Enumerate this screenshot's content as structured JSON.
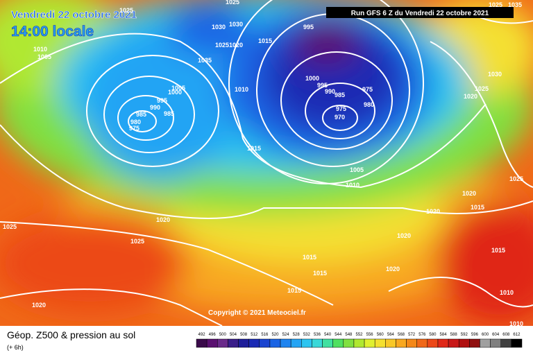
{
  "header": {
    "date": "Vendredi 22 octobre 2021",
    "time": "14:00 locale",
    "run": "Run GFS 6 Z du Vendredi 22 octobre 2021"
  },
  "footer": {
    "title": "Géop. Z500 & pression au sol",
    "lead": "(+ 6h)",
    "copyright": "Copyright © 2021 Meteociel.fr"
  },
  "legend": {
    "values": [
      492,
      496,
      500,
      504,
      508,
      512,
      516,
      520,
      524,
      528,
      532,
      536,
      540,
      544,
      548,
      552,
      556,
      560,
      564,
      568,
      572,
      576,
      580,
      584,
      588,
      592,
      596,
      600,
      604,
      608,
      612
    ],
    "colors": [
      "#3a0a4a",
      "#5a1070",
      "#6a2a8a",
      "#3a1e8a",
      "#1e1e9a",
      "#1a2ab4",
      "#1a44d0",
      "#1a64e4",
      "#1e84f0",
      "#24a4f4",
      "#2cc4f0",
      "#3ad8d8",
      "#40e0a0",
      "#50e060",
      "#80e040",
      "#b0e830",
      "#e0f030",
      "#f4e030",
      "#f8c828",
      "#f8a820",
      "#f48818",
      "#f06818",
      "#ec4818",
      "#e02818",
      "#c81818",
      "#b01010",
      "#901010",
      "#a0a0a0",
      "#808080",
      "#404040",
      "#000000"
    ]
  },
  "isobar_labels": [
    "1025",
    "1025",
    "1010",
    "1005",
    "1030",
    "1030",
    "1025",
    "1020",
    "1035",
    "1015",
    "995",
    "1010",
    "1000",
    "995",
    "990",
    "985",
    "975",
    "980",
    "975",
    "970",
    "1005",
    "1000",
    "995",
    "990",
    "985",
    "985",
    "980",
    "975",
    "1015",
    "1005",
    "1010",
    "1030",
    "1025",
    "1020",
    "1025",
    "1020",
    "1015",
    "1020",
    "1025",
    "1020",
    "1025",
    "1020",
    "1015",
    "1015",
    "1015",
    "1020",
    "1015",
    "1010",
    "1020",
    "1010",
    "1025",
    "1035"
  ]
}
